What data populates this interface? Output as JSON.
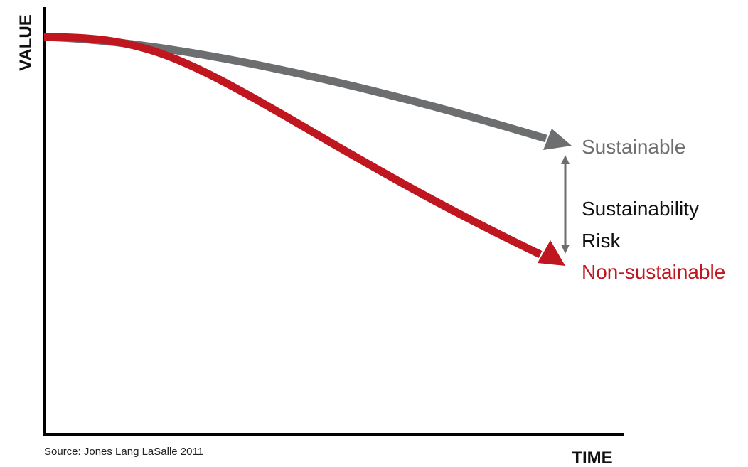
{
  "axes": {
    "y_label": "VALUE",
    "x_label": "TIME"
  },
  "series": {
    "sustainable": {
      "label": "Sustainable",
      "color": "#6d6e70"
    },
    "non_sustainable": {
      "label": "Non-sustainable",
      "color": "#c0161f"
    }
  },
  "risk": {
    "line1": "Sustainability",
    "line2": "Risk",
    "color": "#6d6e70"
  },
  "source": "Source: Jones Lang LaSalle 2011"
}
